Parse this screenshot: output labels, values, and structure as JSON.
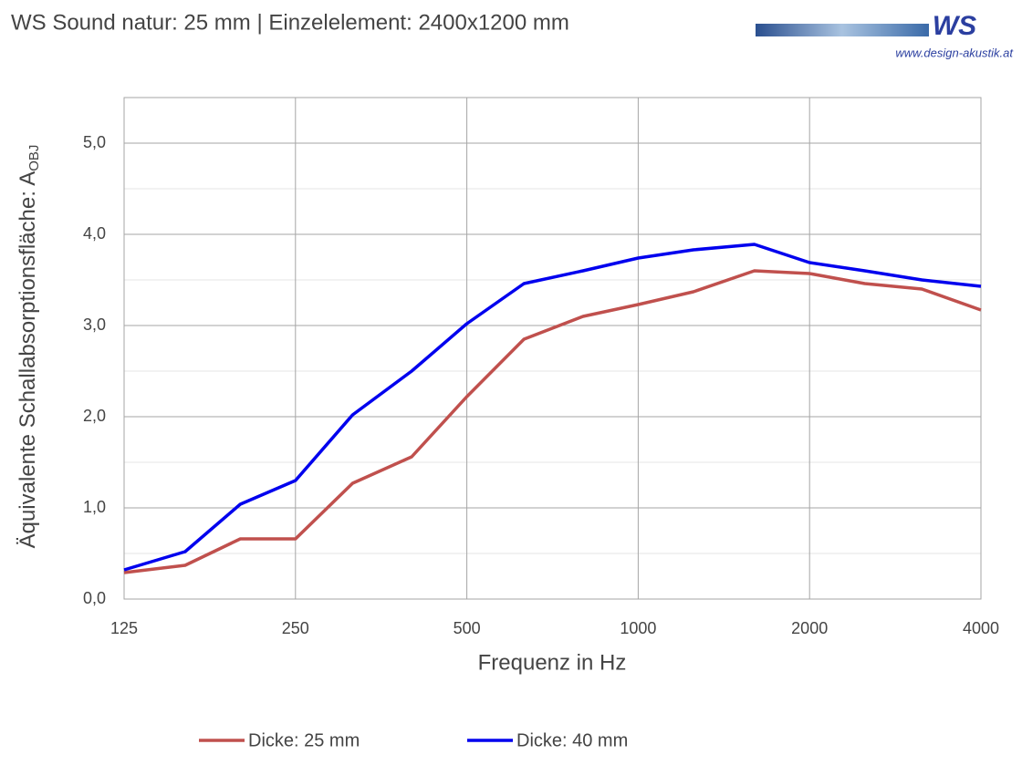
{
  "chart_data": {
    "type": "line",
    "title": "WS Sound natur: 25 mm | Einzelelement: 2400x1200 mm",
    "logo_text": "WS",
    "logo_url": "www.design-akustik.at",
    "x_label": "Frequenz in Hz",
    "y_label": "Äquivalente Schallabsorptionsfläche: A",
    "y_label_sub": "OBJ",
    "x": [
      125,
      160,
      200,
      250,
      315,
      400,
      500,
      630,
      800,
      1000,
      1250,
      1600,
      2000,
      2500,
      3150,
      4000
    ],
    "series": [
      {
        "name": "Dicke: 25 mm",
        "color": "#c0504d",
        "values": [
          0.29,
          0.37,
          0.66,
          0.66,
          1.27,
          1.56,
          2.22,
          2.85,
          3.1,
          3.23,
          3.37,
          3.6,
          3.57,
          3.46,
          3.4,
          3.17
        ]
      },
      {
        "name": "Dicke: 40 mm",
        "color": "#0000ee",
        "values": [
          0.32,
          0.52,
          1.04,
          1.3,
          2.02,
          2.5,
          3.02,
          3.46,
          3.6,
          3.74,
          3.83,
          3.89,
          3.69,
          3.6,
          3.5,
          3.43
        ]
      }
    ],
    "x_log": true,
    "xlim": [
      125,
      4000
    ],
    "xticks": [
      125,
      250,
      500,
      1000,
      2000,
      4000
    ],
    "ylim": [
      0,
      5.5
    ],
    "yticks": [
      {
        "value": 0,
        "label": "0,0"
      },
      {
        "value": 1,
        "label": "1,0"
      },
      {
        "value": 2,
        "label": "2,0"
      },
      {
        "value": 3,
        "label": "3,0"
      },
      {
        "value": 4,
        "label": "4,0"
      },
      {
        "value": 5,
        "label": "5,0"
      }
    ],
    "grid": true,
    "minor_grid": true,
    "legend": "bottom"
  }
}
